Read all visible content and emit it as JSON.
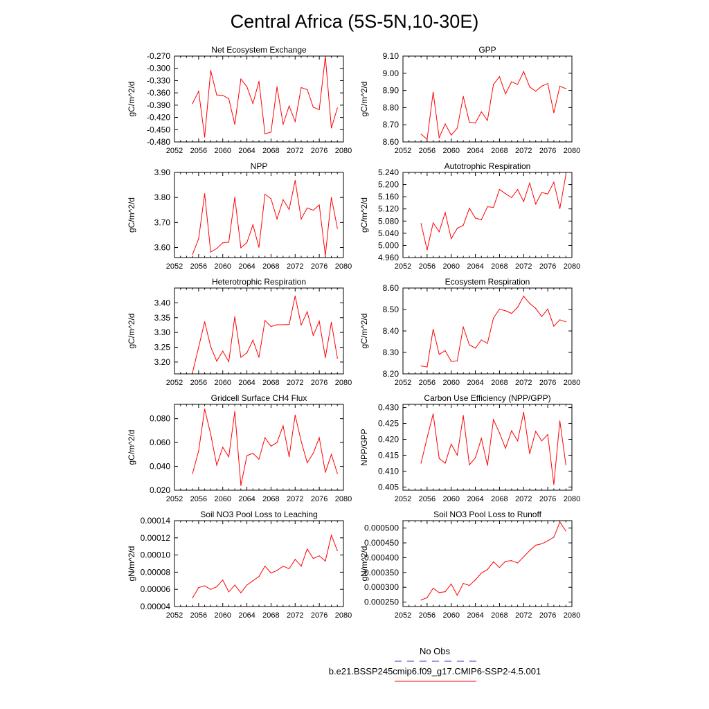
{
  "title": "Central Africa (5S-5N,10-30E)",
  "legend": {
    "entries": [
      {
        "label": "No Obs",
        "color": "#3333cc",
        "style": "dashed"
      },
      {
        "label": "b.e21.BSSP245cmip6.f09_g17.CMIP6-SSP2-4.5.001",
        "color": "#ff0000",
        "style": "solid"
      }
    ]
  },
  "colors": {
    "series": "#ff0000",
    "axis": "#000000"
  },
  "chart_data": [
    {
      "type": "line",
      "title": "Net Ecosystem Exchange",
      "ylabel": "gC/m^2/d",
      "xlim": [
        2052,
        2080
      ],
      "ylim": [
        -0.48,
        -0.27
      ],
      "xticks": [
        2052,
        2056,
        2060,
        2064,
        2068,
        2072,
        2076,
        2080
      ],
      "xtick_labels": [
        "2052",
        "2056",
        "2060",
        "2064",
        "2068",
        "2072",
        "2076",
        "2080"
      ],
      "yticks": [
        -0.48,
        -0.45,
        -0.42,
        -0.39,
        -0.36,
        -0.33,
        -0.3,
        -0.27
      ],
      "ytick_labels": [
        "-0.480",
        "-0.450",
        "-0.420",
        "-0.390",
        "-0.360",
        "-0.330",
        "-0.300",
        "-0.270"
      ],
      "x": [
        2055,
        2056,
        2057,
        2058,
        2059,
        2060,
        2061,
        2062,
        2063,
        2064,
        2065,
        2066,
        2067,
        2068,
        2069,
        2070,
        2071,
        2072,
        2073,
        2074,
        2075,
        2076,
        2077,
        2078,
        2079
      ],
      "series": [
        {
          "values": [
            -0.386,
            -0.356,
            -0.468,
            -0.305,
            -0.365,
            -0.366,
            -0.374,
            -0.437,
            -0.326,
            -0.345,
            -0.386,
            -0.332,
            -0.46,
            -0.456,
            -0.345,
            -0.437,
            -0.392,
            -0.43,
            -0.347,
            -0.352,
            -0.395,
            -0.401,
            -0.271,
            -0.446,
            -0.397
          ]
        }
      ]
    },
    {
      "type": "line",
      "title": "GPP",
      "ylabel": "gC/m^2/d",
      "xlim": [
        2052,
        2080
      ],
      "ylim": [
        8.6,
        9.1
      ],
      "xticks": [
        2052,
        2056,
        2060,
        2064,
        2068,
        2072,
        2076,
        2080
      ],
      "xtick_labels": [
        "2052",
        "2056",
        "2060",
        "2064",
        "2068",
        "2072",
        "2076",
        "2080"
      ],
      "yticks": [
        8.6,
        8.7,
        8.8,
        8.9,
        9.0,
        9.1
      ],
      "ytick_labels": [
        "8.60",
        "8.70",
        "8.80",
        "8.90",
        "9.00",
        "9.10"
      ],
      "x": [
        2055,
        2056,
        2057,
        2058,
        2059,
        2060,
        2061,
        2062,
        2063,
        2064,
        2065,
        2066,
        2067,
        2068,
        2069,
        2070,
        2071,
        2072,
        2073,
        2074,
        2075,
        2076,
        2077,
        2078,
        2079
      ],
      "series": [
        {
          "values": [
            8.645,
            8.615,
            8.89,
            8.625,
            8.705,
            8.64,
            8.68,
            8.865,
            8.715,
            8.71,
            8.775,
            8.725,
            8.935,
            8.98,
            8.88,
            8.95,
            8.935,
            9.01,
            8.92,
            8.895,
            8.925,
            8.94,
            8.77,
            8.925,
            8.91
          ]
        }
      ]
    },
    {
      "type": "line",
      "title": "NPP",
      "ylabel": "gC/m^2/d",
      "xlim": [
        2052,
        2080
      ],
      "ylim": [
        3.56,
        3.9
      ],
      "xticks": [
        2052,
        2056,
        2060,
        2064,
        2068,
        2072,
        2076,
        2080
      ],
      "xtick_labels": [
        "2052",
        "2056",
        "2060",
        "2064",
        "2068",
        "2072",
        "2076",
        "2080"
      ],
      "yticks": [
        3.6,
        3.7,
        3.8,
        3.9
      ],
      "ytick_labels": [
        "3.60",
        "3.70",
        "3.80",
        "3.90"
      ],
      "x": [
        2055,
        2056,
        2057,
        2058,
        2059,
        2060,
        2061,
        2062,
        2063,
        2064,
        2065,
        2066,
        2067,
        2068,
        2069,
        2070,
        2071,
        2072,
        2073,
        2074,
        2075,
        2076,
        2077,
        2078,
        2079
      ],
      "series": [
        {
          "values": [
            3.573,
            3.635,
            3.815,
            3.582,
            3.596,
            3.619,
            3.621,
            3.801,
            3.599,
            3.62,
            3.691,
            3.601,
            3.813,
            3.795,
            3.714,
            3.791,
            3.752,
            3.868,
            3.714,
            3.758,
            3.749,
            3.77,
            3.568,
            3.8,
            3.677
          ]
        }
      ]
    },
    {
      "type": "line",
      "title": "Autotrophic Respiration",
      "ylabel": "gC/m^2/d",
      "xlim": [
        2052,
        2080
      ],
      "ylim": [
        4.96,
        5.24
      ],
      "xticks": [
        2052,
        2056,
        2060,
        2064,
        2068,
        2072,
        2076,
        2080
      ],
      "xtick_labels": [
        "2052",
        "2056",
        "2060",
        "2064",
        "2068",
        "2072",
        "2076",
        "2080"
      ],
      "yticks": [
        4.96,
        5.0,
        5.04,
        5.08,
        5.12,
        5.16,
        5.2,
        5.24
      ],
      "ytick_labels": [
        "4.960",
        "5.000",
        "5.040",
        "5.080",
        "5.120",
        "5.160",
        "5.200",
        "5.240"
      ],
      "x": [
        2055,
        2056,
        2057,
        2058,
        2059,
        2060,
        2061,
        2062,
        2063,
        2064,
        2065,
        2066,
        2067,
        2068,
        2069,
        2070,
        2071,
        2072,
        2073,
        2074,
        2075,
        2076,
        2077,
        2078,
        2079
      ],
      "series": [
        {
          "values": [
            5.072,
            4.985,
            5.074,
            5.045,
            5.108,
            5.022,
            5.056,
            5.066,
            5.122,
            5.09,
            5.084,
            5.127,
            5.125,
            5.184,
            5.17,
            5.157,
            5.184,
            5.144,
            5.205,
            5.136,
            5.174,
            5.169,
            5.208,
            5.121,
            5.232
          ]
        }
      ]
    },
    {
      "type": "line",
      "title": "Heterotrophic Respiration",
      "ylabel": "gC/m^2/d",
      "xlim": [
        2052,
        2080
      ],
      "ylim": [
        3.16,
        3.45
      ],
      "xticks": [
        2052,
        2056,
        2060,
        2064,
        2068,
        2072,
        2076,
        2080
      ],
      "xtick_labels": [
        "2052",
        "2056",
        "2060",
        "2064",
        "2068",
        "2072",
        "2076",
        "2080"
      ],
      "yticks": [
        3.2,
        3.25,
        3.3,
        3.35,
        3.4
      ],
      "ytick_labels": [
        "3.20",
        "3.25",
        "3.30",
        "3.35",
        "3.40"
      ],
      "x": [
        2055,
        2056,
        2057,
        2058,
        2059,
        2060,
        2061,
        2062,
        2063,
        2064,
        2065,
        2066,
        2067,
        2068,
        2069,
        2070,
        2071,
        2072,
        2073,
        2074,
        2075,
        2076,
        2077,
        2078,
        2079
      ],
      "series": [
        {
          "values": [
            3.165,
            3.25,
            3.336,
            3.252,
            3.203,
            3.237,
            3.201,
            3.353,
            3.216,
            3.231,
            3.274,
            3.216,
            3.34,
            3.32,
            3.326,
            3.326,
            3.327,
            3.423,
            3.325,
            3.37,
            3.29,
            3.338,
            3.215,
            3.334,
            3.213
          ]
        }
      ]
    },
    {
      "type": "line",
      "title": "Ecosystem Respiration",
      "ylabel": "gC/m^2/d",
      "xlim": [
        2052,
        2080
      ],
      "ylim": [
        8.2,
        8.6
      ],
      "xticks": [
        2052,
        2056,
        2060,
        2064,
        2068,
        2072,
        2076,
        2080
      ],
      "xtick_labels": [
        "2052",
        "2056",
        "2060",
        "2064",
        "2068",
        "2072",
        "2076",
        "2080"
      ],
      "yticks": [
        8.2,
        8.3,
        8.4,
        8.5,
        8.6
      ],
      "ytick_labels": [
        "8.20",
        "8.30",
        "8.40",
        "8.50",
        "8.60"
      ],
      "x": [
        2055,
        2056,
        2057,
        2058,
        2059,
        2060,
        2061,
        2062,
        2063,
        2064,
        2065,
        2066,
        2067,
        2068,
        2069,
        2070,
        2071,
        2072,
        2073,
        2074,
        2075,
        2076,
        2077,
        2078,
        2079
      ],
      "series": [
        {
          "values": [
            8.237,
            8.232,
            8.408,
            8.291,
            8.308,
            8.258,
            8.261,
            8.418,
            8.335,
            8.32,
            8.358,
            8.342,
            8.46,
            8.502,
            8.494,
            8.482,
            8.51,
            8.562,
            8.528,
            8.505,
            8.467,
            8.502,
            8.422,
            8.452,
            8.443
          ]
        }
      ]
    },
    {
      "type": "line",
      "title": "Gridcell Surface CH4 Flux",
      "ylabel": "gC/m^2/d",
      "xlim": [
        2052,
        2080
      ],
      "ylim": [
        0.02,
        0.092
      ],
      "xticks": [
        2052,
        2056,
        2060,
        2064,
        2068,
        2072,
        2076,
        2080
      ],
      "xtick_labels": [
        "2052",
        "2056",
        "2060",
        "2064",
        "2068",
        "2072",
        "2076",
        "2080"
      ],
      "yticks": [
        0.02,
        0.04,
        0.06,
        0.08
      ],
      "ytick_labels": [
        "0.020",
        "0.040",
        "0.060",
        "0.080"
      ],
      "x": [
        2055,
        2056,
        2057,
        2058,
        2059,
        2060,
        2061,
        2062,
        2063,
        2064,
        2065,
        2066,
        2067,
        2068,
        2069,
        2070,
        2071,
        2072,
        2073,
        2074,
        2075,
        2076,
        2077,
        2078,
        2079
      ],
      "series": [
        {
          "values": [
            0.034,
            0.053,
            0.088,
            0.067,
            0.041,
            0.056,
            0.048,
            0.086,
            0.024,
            0.049,
            0.051,
            0.046,
            0.064,
            0.057,
            0.06,
            0.074,
            0.048,
            0.083,
            0.061,
            0.043,
            0.051,
            0.064,
            0.035,
            0.05,
            0.034
          ]
        }
      ]
    },
    {
      "type": "line",
      "title": "Carbon Use Efficiency (NPP/GPP)",
      "ylabel": "NPP/GPP",
      "xlim": [
        2052,
        2080
      ],
      "ylim": [
        0.404,
        0.431
      ],
      "xticks": [
        2052,
        2056,
        2060,
        2064,
        2068,
        2072,
        2076,
        2080
      ],
      "xtick_labels": [
        "2052",
        "2056",
        "2060",
        "2064",
        "2068",
        "2072",
        "2076",
        "2080"
      ],
      "yticks": [
        0.405,
        0.41,
        0.415,
        0.42,
        0.425,
        0.43
      ],
      "ytick_labels": [
        "0.405",
        "0.410",
        "0.415",
        "0.420",
        "0.425",
        "0.430"
      ],
      "x": [
        2055,
        2056,
        2057,
        2058,
        2059,
        2060,
        2061,
        2062,
        2063,
        2064,
        2065,
        2066,
        2067,
        2068,
        2069,
        2070,
        2071,
        2072,
        2073,
        2074,
        2075,
        2076,
        2077,
        2078,
        2079
      ],
      "series": [
        {
          "values": [
            0.4125,
            0.4205,
            0.428,
            0.414,
            0.4125,
            0.4185,
            0.415,
            0.4275,
            0.412,
            0.4142,
            0.4203,
            0.4118,
            0.4262,
            0.422,
            0.4172,
            0.4227,
            0.4195,
            0.4285,
            0.4155,
            0.4225,
            0.4195,
            0.4215,
            0.4058,
            0.4258,
            0.412
          ]
        }
      ]
    },
    {
      "type": "line",
      "title": "Soil NO3 Pool Loss to Leaching",
      "ylabel": "gN/m^2/d",
      "xlim": [
        2052,
        2080
      ],
      "ylim": [
        4e-05,
        0.00014
      ],
      "xticks": [
        2052,
        2056,
        2060,
        2064,
        2068,
        2072,
        2076,
        2080
      ],
      "xtick_labels": [
        "2052",
        "2056",
        "2060",
        "2064",
        "2068",
        "2072",
        "2076",
        "2080"
      ],
      "yticks": [
        4e-05,
        6e-05,
        8e-05,
        0.0001,
        0.00012,
        0.00014
      ],
      "ytick_labels": [
        "0.00004",
        "0.00006",
        "0.00008",
        "0.00010",
        "0.00012",
        "0.00014"
      ],
      "x": [
        2055,
        2056,
        2057,
        2058,
        2059,
        2060,
        2061,
        2062,
        2063,
        2064,
        2065,
        2066,
        2067,
        2068,
        2069,
        2070,
        2071,
        2072,
        2073,
        2074,
        2075,
        2076,
        2077,
        2078,
        2079
      ],
      "series": [
        {
          "values": [
            5e-05,
            6.2e-05,
            6.4e-05,
            6e-05,
            6.3e-05,
            7.1e-05,
            5.7e-05,
            6.5e-05,
            5.6e-05,
            6.5e-05,
            7e-05,
            7.5e-05,
            8.7e-05,
            7.9e-05,
            8.2e-05,
            8.7e-05,
            8.4e-05,
            9.5e-05,
            8.7e-05,
            0.000107,
            9.6e-05,
            9.9e-05,
            9.3e-05,
            0.000123,
            0.000105
          ]
        }
      ]
    },
    {
      "type": "line",
      "title": "Soil NO3 Pool Loss to Runoff",
      "ylabel": "gN/m^2/d",
      "xlim": [
        2052,
        2080
      ],
      "ylim": [
        0.000235,
        0.000525
      ],
      "xticks": [
        2052,
        2056,
        2060,
        2064,
        2068,
        2072,
        2076,
        2080
      ],
      "xtick_labels": [
        "2052",
        "2056",
        "2060",
        "2064",
        "2068",
        "2072",
        "2076",
        "2080"
      ],
      "yticks": [
        0.00025,
        0.0003,
        0.00035,
        0.0004,
        0.00045,
        0.0005
      ],
      "ytick_labels": [
        "0.000250",
        "0.000300",
        "0.000350",
        "0.000400",
        "0.000450",
        "0.000500"
      ],
      "x": [
        2055,
        2056,
        2057,
        2058,
        2059,
        2060,
        2061,
        2062,
        2063,
        2064,
        2065,
        2066,
        2067,
        2068,
        2069,
        2070,
        2071,
        2072,
        2073,
        2074,
        2075,
        2076,
        2077,
        2078,
        2079
      ],
      "series": [
        {
          "values": [
            0.000257,
            0.000265,
            0.000297,
            0.000282,
            0.000285,
            0.000311,
            0.000273,
            0.000313,
            0.000306,
            0.000325,
            0.000348,
            0.00036,
            0.000386,
            0.000367,
            0.000388,
            0.00039,
            0.000382,
            0.000403,
            0.000424,
            0.000442,
            0.000447,
            0.000457,
            0.000469,
            0.00052,
            0.00049
          ]
        }
      ]
    }
  ]
}
